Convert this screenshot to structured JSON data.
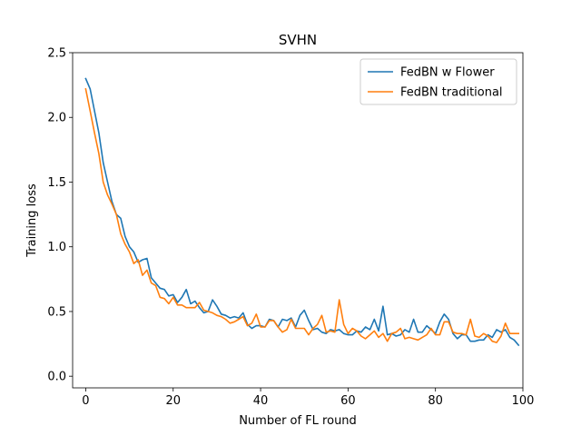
{
  "chart_data": {
    "type": "line",
    "title": "SVHN",
    "xlabel": "Number of FL round",
    "ylabel": "Training loss",
    "xlim": [
      -3,
      100
    ],
    "ylim": [
      -0.09,
      2.5
    ],
    "xticks": [
      0,
      20,
      40,
      60,
      80,
      100
    ],
    "xtick_labels": [
      "0",
      "20",
      "40",
      "60",
      "80",
      "100"
    ],
    "yticks": [
      0.0,
      0.5,
      1.0,
      1.5,
      2.0,
      2.5
    ],
    "ytick_labels": [
      "0.0",
      "0.5",
      "1.0",
      "1.5",
      "2.0",
      "2.5"
    ],
    "grid": false,
    "legend_position": "top-right",
    "series": [
      {
        "name": "FedBN w Flower",
        "color": "#1f77b4",
        "x": [
          0,
          1,
          2,
          3,
          4,
          5,
          6,
          7,
          8,
          9,
          10,
          11,
          12,
          13,
          14,
          15,
          16,
          17,
          18,
          19,
          20,
          21,
          22,
          23,
          24,
          25,
          26,
          27,
          28,
          29,
          30,
          31,
          32,
          33,
          34,
          35,
          36,
          37,
          38,
          39,
          40,
          41,
          42,
          43,
          44,
          45,
          46,
          47,
          48,
          49,
          50,
          51,
          52,
          53,
          54,
          55,
          56,
          57,
          58,
          59,
          60,
          61,
          62,
          63,
          64,
          65,
          66,
          67,
          68,
          69,
          70,
          71,
          72,
          73,
          74,
          75,
          76,
          77,
          78,
          79,
          80,
          81,
          82,
          83,
          84,
          85,
          86,
          87,
          88,
          89,
          90,
          91,
          92,
          93,
          94,
          95,
          96,
          97,
          98,
          99
        ],
        "values": [
          2.3,
          2.22,
          2.05,
          1.88,
          1.65,
          1.5,
          1.35,
          1.25,
          1.22,
          1.08,
          1.0,
          0.96,
          0.88,
          0.9,
          0.91,
          0.76,
          0.72,
          0.68,
          0.67,
          0.62,
          0.63,
          0.57,
          0.61,
          0.67,
          0.56,
          0.58,
          0.53,
          0.49,
          0.5,
          0.59,
          0.54,
          0.48,
          0.47,
          0.45,
          0.46,
          0.45,
          0.49,
          0.4,
          0.37,
          0.39,
          0.39,
          0.38,
          0.44,
          0.43,
          0.38,
          0.44,
          0.43,
          0.45,
          0.38,
          0.47,
          0.51,
          0.43,
          0.36,
          0.37,
          0.34,
          0.33,
          0.36,
          0.35,
          0.36,
          0.33,
          0.32,
          0.32,
          0.35,
          0.34,
          0.38,
          0.36,
          0.44,
          0.35,
          0.54,
          0.32,
          0.33,
          0.31,
          0.32,
          0.36,
          0.34,
          0.44,
          0.34,
          0.34,
          0.39,
          0.36,
          0.33,
          0.42,
          0.48,
          0.44,
          0.33,
          0.29,
          0.32,
          0.32,
          0.27,
          0.27,
          0.28,
          0.28,
          0.32,
          0.3,
          0.36,
          0.34,
          0.36,
          0.3,
          0.28,
          0.24
        ]
      },
      {
        "name": "FedBN traditional",
        "color": "#ff7f0e",
        "x": [
          0,
          1,
          2,
          3,
          4,
          5,
          6,
          7,
          8,
          9,
          10,
          11,
          12,
          13,
          14,
          15,
          16,
          17,
          18,
          19,
          20,
          21,
          22,
          23,
          24,
          25,
          26,
          27,
          28,
          29,
          30,
          31,
          32,
          33,
          34,
          35,
          36,
          37,
          38,
          39,
          40,
          41,
          42,
          43,
          44,
          45,
          46,
          47,
          48,
          49,
          50,
          51,
          52,
          53,
          54,
          55,
          56,
          57,
          58,
          59,
          60,
          61,
          62,
          63,
          64,
          65,
          66,
          67,
          68,
          69,
          70,
          71,
          72,
          73,
          74,
          75,
          76,
          77,
          78,
          79,
          80,
          81,
          82,
          83,
          84,
          85,
          86,
          87,
          88,
          89,
          90,
          91,
          92,
          93,
          94,
          95,
          96,
          97,
          98,
          99
        ],
        "values": [
          2.22,
          2.05,
          1.88,
          1.72,
          1.5,
          1.4,
          1.33,
          1.25,
          1.1,
          1.02,
          0.96,
          0.87,
          0.9,
          0.78,
          0.82,
          0.72,
          0.7,
          0.61,
          0.6,
          0.56,
          0.61,
          0.55,
          0.55,
          0.53,
          0.53,
          0.53,
          0.57,
          0.51,
          0.5,
          0.49,
          0.47,
          0.46,
          0.44,
          0.41,
          0.42,
          0.44,
          0.46,
          0.39,
          0.41,
          0.48,
          0.38,
          0.38,
          0.43,
          0.43,
          0.38,
          0.34,
          0.36,
          0.44,
          0.37,
          0.37,
          0.37,
          0.32,
          0.37,
          0.4,
          0.47,
          0.34,
          0.35,
          0.34,
          0.59,
          0.4,
          0.33,
          0.37,
          0.35,
          0.31,
          0.29,
          0.32,
          0.35,
          0.3,
          0.33,
          0.27,
          0.33,
          0.34,
          0.37,
          0.29,
          0.3,
          0.29,
          0.28,
          0.3,
          0.32,
          0.37,
          0.32,
          0.32,
          0.42,
          0.42,
          0.34,
          0.33,
          0.33,
          0.32,
          0.44,
          0.31,
          0.3,
          0.33,
          0.31,
          0.27,
          0.26,
          0.31,
          0.41,
          0.33,
          0.33,
          0.33
        ]
      }
    ]
  }
}
